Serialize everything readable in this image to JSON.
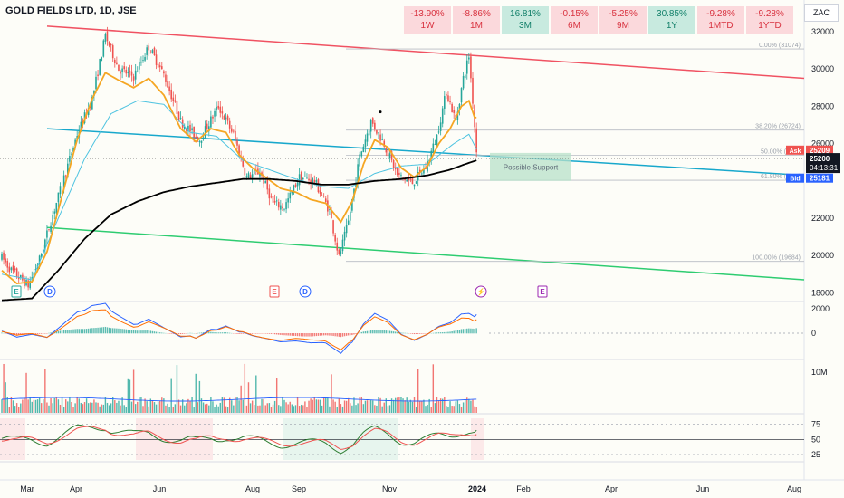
{
  "title": "GOLD FIELDS LTD, 1D, JSE",
  "currency": "ZAC",
  "performance": [
    {
      "change": "-13.90%",
      "period": "1W",
      "tone": "neg"
    },
    {
      "change": "-8.86%",
      "period": "1M",
      "tone": "neg"
    },
    {
      "change": "16.81%",
      "period": "3M",
      "tone": "pos"
    },
    {
      "change": "-0.15%",
      "period": "6M",
      "tone": "neg"
    },
    {
      "change": "-5.25%",
      "period": "9M",
      "tone": "neg"
    },
    {
      "change": "30.85%",
      "period": "1Y",
      "tone": "pos"
    },
    {
      "change": "-9.28%",
      "period": "1MTD",
      "tone": "neg"
    },
    {
      "change": "-9.28%",
      "period": "1YTD",
      "tone": "neg"
    }
  ],
  "colors": {
    "up": "#26a69a",
    "down": "#ef5350",
    "ema_fast": "#f5a623",
    "sma_mid": "#4dc3e0",
    "sma_long": "#000000",
    "channel_top": "#f05262",
    "channel_mid": "#18a8cc",
    "channel_bottom": "#2ecc71",
    "macd": "#2962ff",
    "signal": "#ff6d00",
    "stoch_k": "#2e7d32",
    "stoch_d": "#ef5350"
  },
  "chart_data": {
    "type": "candlestick",
    "y_range": [
      17500,
      33000
    ],
    "y_ticks": [
      "32000",
      "30000",
      "28000",
      "26000",
      "22000",
      "20000",
      "18000"
    ],
    "x_labels": [
      "Mar",
      "Apr",
      "Jun",
      "Aug",
      "Sep",
      "Nov",
      "2024",
      "Feb",
      "Apr",
      "Jun",
      "Aug"
    ],
    "price_series": {
      "anchors": [
        [
          0,
          19900
        ],
        [
          5,
          19200
        ],
        [
          14,
          18400
        ],
        [
          20,
          19800
        ],
        [
          28,
          22500
        ],
        [
          40,
          26500
        ],
        [
          48,
          28400
        ],
        [
          55,
          31800
        ],
        [
          62,
          30000
        ],
        [
          70,
          29600
        ],
        [
          78,
          31200
        ],
        [
          86,
          29700
        ],
        [
          95,
          27200
        ],
        [
          105,
          26200
        ],
        [
          115,
          28000
        ],
        [
          123,
          26500
        ],
        [
          130,
          24200
        ],
        [
          137,
          24500
        ],
        [
          144,
          22800
        ],
        [
          150,
          22600
        ],
        [
          158,
          24200
        ],
        [
          166,
          24000
        ],
        [
          174,
          22400
        ],
        [
          179,
          19900
        ],
        [
          184,
          21800
        ],
        [
          190,
          25300
        ],
        [
          196,
          27200
        ],
        [
          203,
          26000
        ],
        [
          210,
          24300
        ],
        [
          218,
          23900
        ],
        [
          225,
          24700
        ],
        [
          231,
          26400
        ],
        [
          236,
          28800
        ],
        [
          241,
          27200
        ],
        [
          245,
          29500
        ],
        [
          248,
          30700
        ],
        [
          250,
          28300
        ],
        [
          252,
          25600
        ]
      ]
    },
    "ema_anchors": [
      [
        0,
        19200
      ],
      [
        8,
        18500
      ],
      [
        16,
        18600
      ],
      [
        24,
        20200
      ],
      [
        32,
        23200
      ],
      [
        40,
        26200
      ],
      [
        48,
        28400
      ],
      [
        55,
        29800
      ],
      [
        62,
        29400
      ],
      [
        70,
        29000
      ],
      [
        78,
        29500
      ],
      [
        86,
        28600
      ],
      [
        95,
        26800
      ],
      [
        103,
        26100
      ],
      [
        111,
        26800
      ],
      [
        119,
        26600
      ],
      [
        126,
        25400
      ],
      [
        133,
        24700
      ],
      [
        140,
        24200
      ],
      [
        148,
        23600
      ],
      [
        156,
        23400
      ],
      [
        164,
        23000
      ],
      [
        172,
        22800
      ],
      [
        180,
        21800
      ],
      [
        186,
        22900
      ],
      [
        192,
        24900
      ],
      [
        198,
        26200
      ],
      [
        205,
        25800
      ],
      [
        212,
        24700
      ],
      [
        219,
        24200
      ],
      [
        226,
        24800
      ],
      [
        232,
        26000
      ],
      [
        238,
        26800
      ],
      [
        244,
        28000
      ],
      [
        248,
        28300
      ],
      [
        251,
        27400
      ]
    ],
    "sma_anchors": [
      [
        0,
        19000
      ],
      [
        16,
        18700
      ],
      [
        30,
        22000
      ],
      [
        44,
        25200
      ],
      [
        58,
        27600
      ],
      [
        72,
        28300
      ],
      [
        86,
        28100
      ],
      [
        100,
        26600
      ],
      [
        114,
        26400
      ],
      [
        128,
        25100
      ],
      [
        142,
        24600
      ],
      [
        156,
        24100
      ],
      [
        170,
        23700
      ],
      [
        184,
        23600
      ],
      [
        198,
        24400
      ],
      [
        212,
        24800
      ],
      [
        226,
        24900
      ],
      [
        240,
        26000
      ],
      [
        248,
        26500
      ],
      [
        252,
        25700
      ]
    ],
    "sma200_anchors": [
      [
        0,
        17600
      ],
      [
        16,
        17700
      ],
      [
        30,
        19200
      ],
      [
        44,
        20900
      ],
      [
        58,
        22200
      ],
      [
        72,
        22900
      ],
      [
        86,
        23400
      ],
      [
        100,
        23700
      ],
      [
        114,
        23900
      ],
      [
        128,
        24100
      ],
      [
        142,
        24100
      ],
      [
        156,
        24000
      ],
      [
        170,
        23800
      ],
      [
        184,
        23800
      ],
      [
        198,
        24000
      ],
      [
        212,
        24100
      ],
      [
        226,
        24300
      ],
      [
        238,
        24600
      ],
      [
        246,
        24900
      ],
      [
        252,
        25100
      ]
    ],
    "channel": {
      "upper": {
        "from": [
          52,
          32300
        ],
        "to": [
          888,
          29500
        ]
      },
      "middle": {
        "from": [
          52,
          26800
        ],
        "to": [
          888,
          24300
        ]
      },
      "lower": {
        "from": [
          52,
          21500
        ],
        "to": [
          888,
          18700
        ]
      }
    },
    "fib_levels": [
      {
        "label": "0.00% (31074)",
        "value": 31074
      },
      {
        "label": "38.20% (26724)",
        "value": 26724
      },
      {
        "label": "50.00% (25...)",
        "value": 25380
      },
      {
        "label": "61.80% (24...)",
        "value": 24035
      },
      {
        "label": "100.00% (19684)",
        "value": 19684
      }
    ],
    "annotation": "Possible Support",
    "last_price": "25200",
    "countdown": "04:13:31",
    "ask_label": "Ask",
    "ask_price": "25209",
    "bid_label": "Bid",
    "bid_price": "25181",
    "events": [
      {
        "label": "E",
        "x": 18,
        "kind": "earnings"
      },
      {
        "label": "D",
        "x": 55,
        "kind": "dividend"
      },
      {
        "label": "E",
        "x": 303,
        "kind": "earnings"
      },
      {
        "label": "D",
        "x": 337,
        "kind": "dividend"
      },
      {
        "label": "⚡",
        "x": 531,
        "kind": "split"
      },
      {
        "label": "E",
        "x": 599,
        "kind": "earnings-future"
      }
    ],
    "macd": {
      "y_ticks": [
        "2000",
        "0"
      ]
    },
    "volume": {
      "y_ticks": [
        "10M"
      ]
    },
    "stochastic": {
      "y_ticks": [
        "75",
        "50",
        "25"
      ]
    }
  }
}
